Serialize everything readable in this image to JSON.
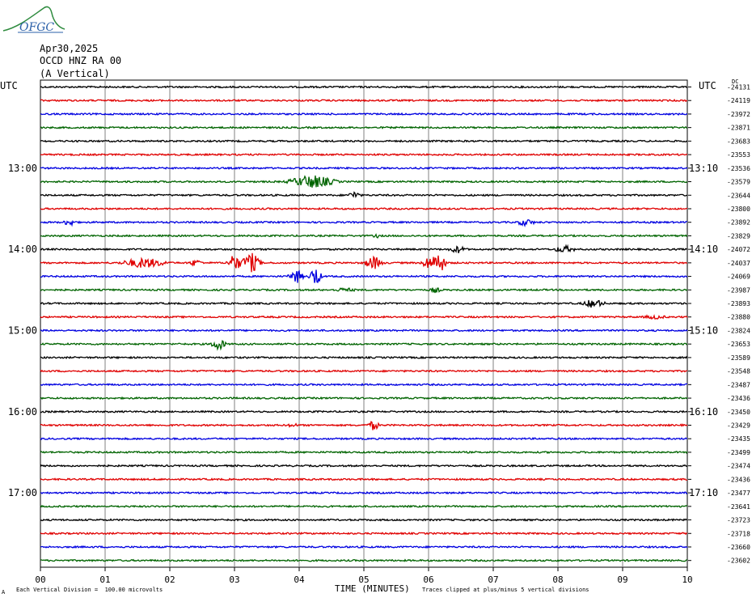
{
  "logo": {
    "text": "OFGC",
    "color": "#2a5fa8",
    "accent": "#2e8b3e"
  },
  "header": {
    "date": "Apr30,2025",
    "station": "OCCD HNZ RA 00",
    "component": "(A Vertical)"
  },
  "utc_left": "UTC",
  "utc_right": "UTC",
  "corner_mark": "DC",
  "chart_data": {
    "type": "line",
    "plot": "helicorder",
    "x": {
      "label": "TIME (MINUTES)",
      "range": [
        0,
        10
      ],
      "ticks": [
        "00",
        "01",
        "02",
        "03",
        "04",
        "05",
        "06",
        "07",
        "08",
        "09",
        "10"
      ]
    },
    "grid": true,
    "row_colors": [
      "#000000",
      "#e00000",
      "#0000e0",
      "#006400"
    ],
    "left_hour_labels": [
      {
        "row": 6,
        "text": "13:00"
      },
      {
        "row": 12,
        "text": "14:00"
      },
      {
        "row": 18,
        "text": "15:00"
      },
      {
        "row": 24,
        "text": "16:00"
      },
      {
        "row": 30,
        "text": "17:00"
      }
    ],
    "right_hour_labels": [
      {
        "row": 6,
        "text": "13:10"
      },
      {
        "row": 12,
        "text": "14:10"
      },
      {
        "row": 18,
        "text": "15:10"
      },
      {
        "row": 24,
        "text": "16:10"
      },
      {
        "row": 30,
        "text": "17:10"
      }
    ],
    "row_values": [
      "-24131",
      "-24119",
      "-23972",
      "-23871",
      "-23683",
      "-23553",
      "-23536",
      "-23579",
      "-23644",
      "-23800",
      "-23892",
      "-23829",
      "-24072",
      "-24037",
      "-24069",
      "-23987",
      "-23893",
      "-23880",
      "-23824",
      "-23653",
      "-23589",
      "-23548",
      "-23487",
      "-23436",
      "-23450",
      "-23429",
      "-23435",
      "-23499",
      "-23474",
      "-23436",
      "-23477",
      "-23641",
      "-23723",
      "-23718",
      "-23660",
      "-23602"
    ],
    "events": [
      {
        "row": 7,
        "minute": 4.2,
        "amp": 9,
        "dur": 0.5
      },
      {
        "row": 8,
        "minute": 4.85,
        "amp": 5,
        "dur": 0.15
      },
      {
        "row": 10,
        "minute": 0.45,
        "amp": 5,
        "dur": 0.15
      },
      {
        "row": 10,
        "minute": 7.5,
        "amp": 5,
        "dur": 0.2
      },
      {
        "row": 11,
        "minute": 5.2,
        "amp": 3,
        "dur": 0.1
      },
      {
        "row": 12,
        "minute": 6.45,
        "amp": 5,
        "dur": 0.2
      },
      {
        "row": 12,
        "minute": 8.1,
        "amp": 5,
        "dur": 0.25
      },
      {
        "row": 13,
        "minute": 1.6,
        "amp": 7,
        "dur": 0.5
      },
      {
        "row": 13,
        "minute": 2.4,
        "amp": 5,
        "dur": 0.15
      },
      {
        "row": 13,
        "minute": 3.0,
        "amp": 12,
        "dur": 0.15
      },
      {
        "row": 13,
        "minute": 3.25,
        "amp": 14,
        "dur": 0.2
      },
      {
        "row": 13,
        "minute": 5.15,
        "amp": 9,
        "dur": 0.2
      },
      {
        "row": 13,
        "minute": 6.0,
        "amp": 9,
        "dur": 0.15
      },
      {
        "row": 13,
        "minute": 6.15,
        "amp": 16,
        "dur": 0.15
      },
      {
        "row": 14,
        "minute": 3.95,
        "amp": 10,
        "dur": 0.15
      },
      {
        "row": 14,
        "minute": 4.25,
        "amp": 14,
        "dur": 0.12
      },
      {
        "row": 15,
        "minute": 4.7,
        "amp": 3,
        "dur": 0.3
      },
      {
        "row": 15,
        "minute": 6.1,
        "amp": 4,
        "dur": 0.15
      },
      {
        "row": 16,
        "minute": 8.55,
        "amp": 6,
        "dur": 0.25
      },
      {
        "row": 17,
        "minute": 9.5,
        "amp": 3,
        "dur": 0.3
      },
      {
        "row": 19,
        "minute": 2.75,
        "amp": 9,
        "dur": 0.15
      },
      {
        "row": 25,
        "minute": 5.15,
        "amp": 7,
        "dur": 0.12
      },
      {
        "row": 25,
        "minute": 3.9,
        "amp": 3,
        "dur": 0.15
      }
    ]
  },
  "footer": {
    "scale_mark": "A",
    "scale_note": "Each Vertical Division =  100.00 microvolts",
    "clip_note": "Traces clipped at plus/minus 5 vertical divisions"
  }
}
